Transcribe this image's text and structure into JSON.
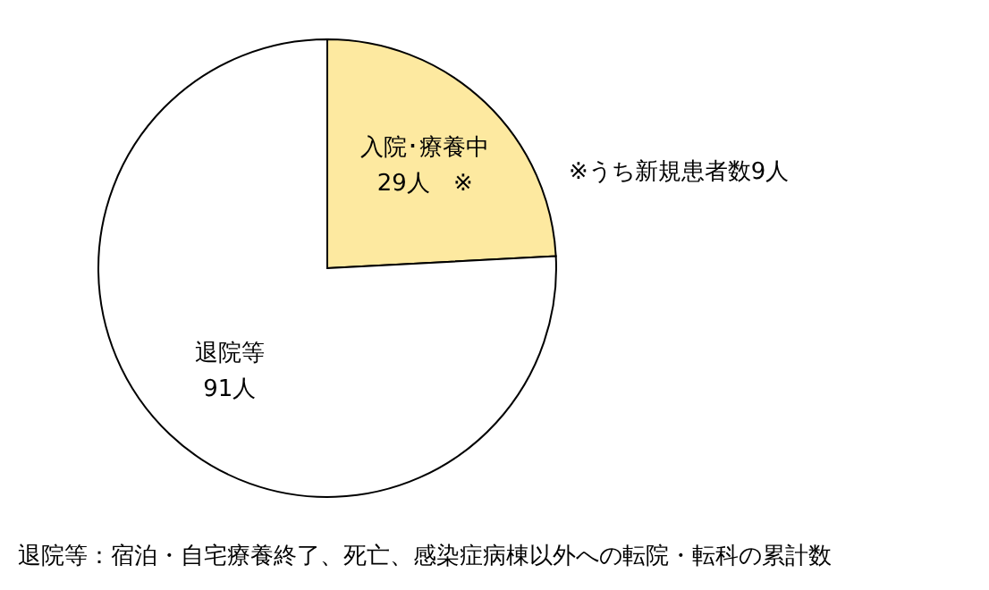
{
  "chart_data": {
    "type": "pie",
    "categories": [
      "入院･療養中",
      "退院等"
    ],
    "values": [
      29,
      91
    ],
    "colors": [
      "#fde9a0",
      "#ffffff"
    ],
    "value_labels": [
      "29人　※",
      "91人"
    ],
    "annotations": [
      "※うち新規患者数9人",
      "退院等：宿泊・自宅療養終了、死亡、感染症病棟以外への転院・転科の累計数"
    ]
  }
}
